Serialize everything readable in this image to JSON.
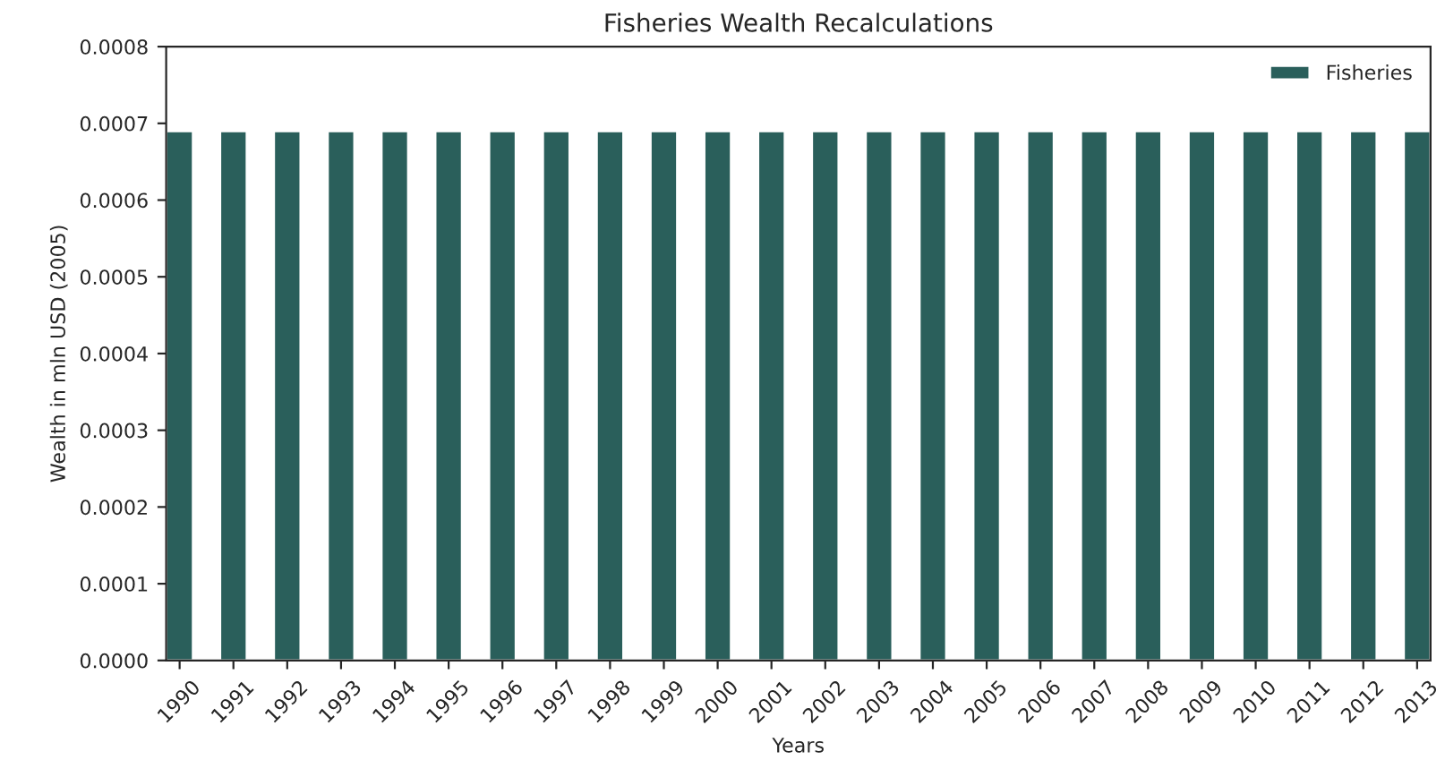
{
  "chart_data": {
    "type": "bar",
    "title": "Fisheries Wealth Recalculations",
    "xlabel": "Years",
    "ylabel": "Wealth in mln USD (2005)",
    "categories": [
      "1990",
      "1991",
      "1992",
      "1993",
      "1994",
      "1995",
      "1996",
      "1997",
      "1998",
      "1999",
      "2000",
      "2001",
      "2002",
      "2003",
      "2004",
      "2005",
      "2006",
      "2007",
      "2008",
      "2009",
      "2010",
      "2011",
      "2012",
      "2013"
    ],
    "series": [
      {
        "name": "Fisheries",
        "color": "#2a5f5b",
        "values": [
          0.00069,
          0.00069,
          0.00069,
          0.00069,
          0.00069,
          0.00069,
          0.00069,
          0.00069,
          0.00069,
          0.00069,
          0.00069,
          0.00069,
          0.00069,
          0.00069,
          0.00069,
          0.00069,
          0.00069,
          0.00069,
          0.00069,
          0.00069,
          0.00069,
          0.00069,
          0.00069,
          0.00069
        ]
      }
    ],
    "ylim": [
      0,
      0.0008
    ],
    "yticks": [
      {
        "value": 0,
        "label": "0.0000"
      },
      {
        "value": 0.0001,
        "label": "0.0001"
      },
      {
        "value": 0.0002,
        "label": "0.0002"
      },
      {
        "value": 0.0003,
        "label": "0.0003"
      },
      {
        "value": 0.0004,
        "label": "0.0004"
      },
      {
        "value": 0.0005,
        "label": "0.0005"
      },
      {
        "value": 0.0006,
        "label": "0.0006"
      },
      {
        "value": 0.0007,
        "label": "0.0007"
      },
      {
        "value": 0.0008,
        "label": "0.0008"
      }
    ],
    "grid": false,
    "legend": "top right"
  }
}
